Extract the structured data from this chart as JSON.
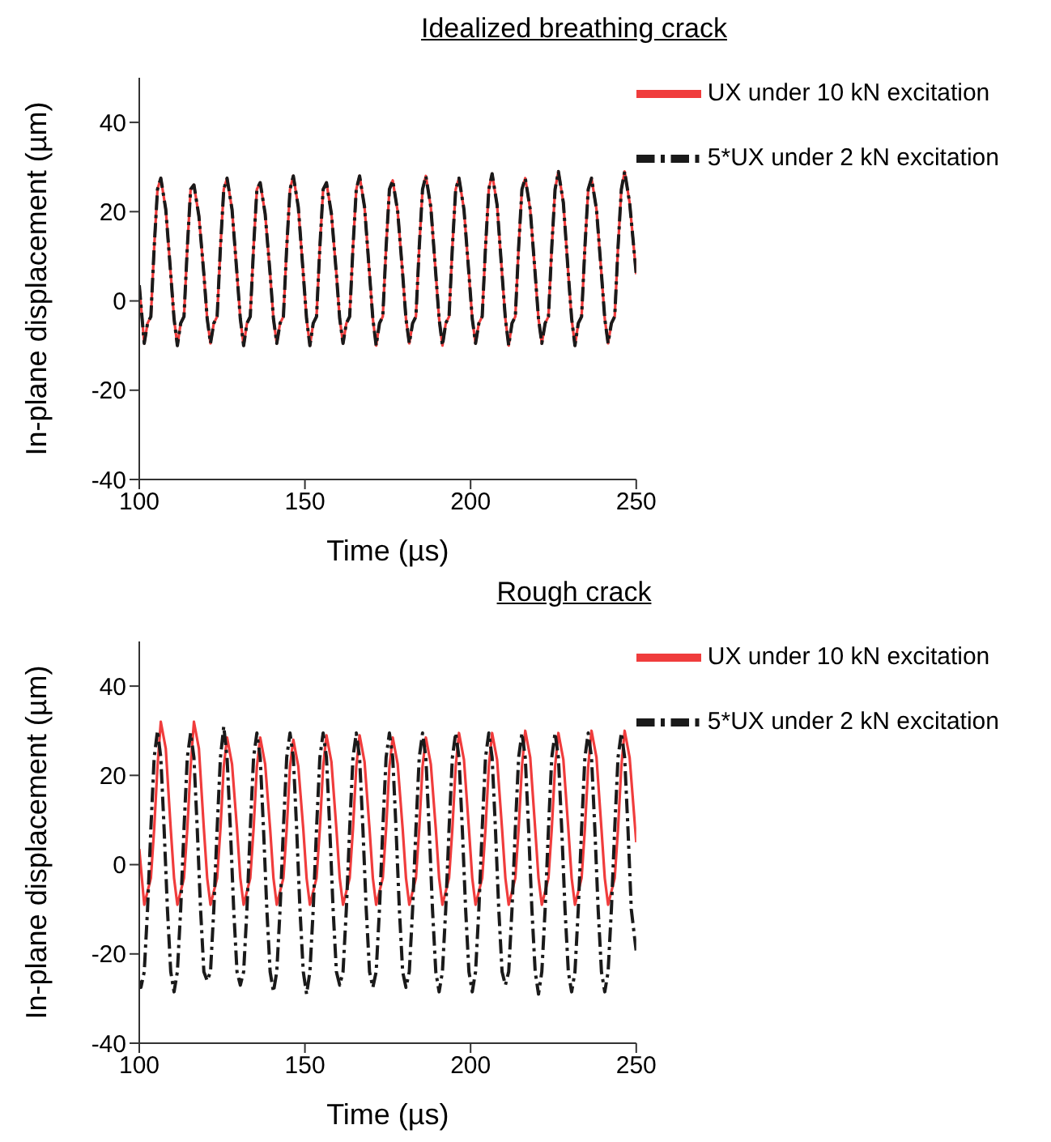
{
  "chart_data": [
    {
      "type": "line",
      "title": "Idealized breathing crack",
      "xlabel": "Time (µs)",
      "ylabel": "In-plane displacement (µm)",
      "xlim": [
        100,
        250
      ],
      "xticks": [
        100,
        150,
        200,
        250
      ],
      "ylim": [
        -40,
        50
      ],
      "yticks": [
        -40,
        -20,
        0,
        20,
        40
      ],
      "legend": "top right",
      "series": [
        {
          "name": "5*UX under 2 kN excitation",
          "color": "#1a1a1a",
          "line_style": "dashdot",
          "x": [
            100,
            101.5,
            102.5,
            103.5,
            104.5,
            105.5,
            106.5,
            108,
            109.5,
            110.5,
            111.5,
            112.5,
            113.5,
            114.5,
            115.5,
            116.5,
            118,
            119.5,
            120.5,
            121.5,
            122.5,
            123.5,
            124.5,
            125.5,
            126.5,
            128,
            129.5,
            130.5,
            131.5,
            132.5,
            133.5,
            134.5,
            135.5,
            136.5,
            138,
            139.5,
            140.5,
            141.5,
            142.5,
            143.5,
            144.5,
            145.5,
            146.5,
            148,
            149.5,
            150.5,
            151.5,
            152.5,
            153.5,
            154.5,
            155.5,
            156.5,
            158,
            159.5,
            160.5,
            161.5,
            162.5,
            163.5,
            164.5,
            165.5,
            166.5,
            168,
            169.5,
            170.5,
            171.5,
            172.5,
            173.5,
            174.5,
            175.5,
            176.5,
            178,
            179.5,
            180.5,
            181.5,
            182.5,
            183.5,
            184.5,
            185.5,
            186.5,
            188,
            189.5,
            190.5,
            191.5,
            192.5,
            193.5,
            194.5,
            195.5,
            196.5,
            198,
            199.5,
            200.5,
            201.5,
            202.5,
            203.5,
            204.5,
            205.5,
            206.5,
            208,
            209.5,
            210.5,
            211.5,
            212.5,
            213.5,
            214.5,
            215.5,
            216.5,
            218,
            219.5,
            220.5,
            221.5,
            222.5,
            223.5,
            224.5,
            225.5,
            226.5,
            228,
            229.5,
            230.5,
            231.5,
            232.5,
            233.5,
            234.5,
            235.5,
            236.5,
            238,
            239.5,
            240.5,
            241.5,
            242.5,
            243.5,
            244.5,
            245.5,
            246.5,
            248,
            250
          ],
          "values": [
            3.5,
            -9.5,
            -5,
            -3.5,
            12,
            25,
            27.5,
            20.5,
            6,
            -4,
            -10,
            -5,
            -3.5,
            12,
            25,
            26,
            19,
            6,
            -4,
            -9.5,
            -5,
            -3.5,
            12,
            25,
            27.5,
            20.5,
            6,
            -4,
            -10,
            -5,
            -3.5,
            12,
            25,
            26.5,
            19.5,
            6,
            -4,
            -9.5,
            -5,
            -3.5,
            12,
            25,
            28,
            21,
            6,
            -4,
            -10,
            -5,
            -3.5,
            12,
            25,
            26.5,
            19.5,
            6,
            -4,
            -9.5,
            -5,
            -3.5,
            12,
            25,
            28,
            21,
            6,
            -4,
            -10,
            -5,
            -3.5,
            12,
            25,
            27,
            20,
            6,
            -4,
            -9.5,
            -5,
            -3.5,
            12,
            25,
            28,
            21,
            6,
            -4,
            -10,
            -5,
            -3.5,
            12,
            25,
            27.5,
            20.5,
            6,
            -4,
            -9.5,
            -5,
            -3.5,
            12,
            25,
            28.5,
            21.5,
            6,
            -4,
            -10,
            -5,
            -3.5,
            12,
            25,
            27.5,
            20.5,
            6,
            -4,
            -9.5,
            -5,
            -3.5,
            12,
            25,
            29,
            22,
            6,
            -4,
            -10,
            -5,
            -3.5,
            12,
            25,
            27.5,
            20.5,
            6,
            -4,
            -9.5,
            -5,
            -3.5,
            12,
            25,
            29,
            22,
            6
          ]
        },
        {
          "name": "UX under 10 kN excitation",
          "color": "#f03c3c",
          "line_style": "solid",
          "x": [
            100,
            101.5,
            102.5,
            103.5,
            104.5,
            105.5,
            106.5,
            108,
            109.5,
            110.5,
            111.5,
            112.5,
            113.5,
            114.5,
            115.5,
            116.5,
            118,
            119.5,
            120.5,
            121.5,
            122.5,
            123.5,
            124.5,
            125.5,
            126.5,
            128,
            129.5,
            130.5,
            131.5,
            132.5,
            133.5,
            134.5,
            135.5,
            136.5,
            138,
            139.5,
            140.5,
            141.5,
            142.5,
            143.5,
            144.5,
            145.5,
            146.5,
            148,
            149.5,
            150.5,
            151.5,
            152.5,
            153.5,
            154.5,
            155.5,
            156.5,
            158,
            159.5,
            160.5,
            161.5,
            162.5,
            163.5,
            164.5,
            165.5,
            166.5,
            168,
            169.5,
            170.5,
            171.5,
            172.5,
            173.5,
            174.5,
            175.5,
            176.5,
            178,
            179.5,
            180.5,
            181.5,
            182.5,
            183.5,
            184.5,
            185.5,
            186.5,
            188,
            189.5,
            190.5,
            191.5,
            192.5,
            193.5,
            194.5,
            195.5,
            196.5,
            198,
            199.5,
            200.5,
            201.5,
            202.5,
            203.5,
            204.5,
            205.5,
            206.5,
            208,
            209.5,
            210.5,
            211.5,
            212.5,
            213.5,
            214.5,
            215.5,
            216.5,
            218,
            219.5,
            220.5,
            221.5,
            222.5,
            223.5,
            224.5,
            225.5,
            226.5,
            228,
            229.5,
            230.5,
            231.5,
            232.5,
            233.5,
            234.5,
            235.5,
            236.5,
            238,
            239.5,
            240.5,
            241.5,
            242.5,
            243.5,
            244.5,
            245.5,
            246.5,
            248,
            250
          ],
          "values": [
            3.5,
            -9.5,
            -5,
            -3.5,
            12,
            25,
            27.5,
            20.5,
            6,
            -4,
            -10,
            -5,
            -3.5,
            12,
            25,
            26,
            19,
            6,
            -4,
            -9.5,
            -5,
            -3.5,
            12,
            25,
            27.5,
            20.5,
            6,
            -4,
            -10,
            -5,
            -3.5,
            12,
            25,
            26.5,
            19.5,
            6,
            -4,
            -9.5,
            -5,
            -3.5,
            12,
            25,
            28,
            21,
            6,
            -4,
            -10,
            -5,
            -3.5,
            12,
            25,
            26.5,
            19.5,
            6,
            -4,
            -9.5,
            -5,
            -3.5,
            12,
            25,
            28,
            21,
            6,
            -4,
            -10,
            -5,
            -3.5,
            12,
            25,
            27,
            20,
            6,
            -4,
            -9.5,
            -5,
            -3.5,
            12,
            25,
            28,
            21,
            6,
            -4,
            -10,
            -5,
            -3.5,
            12,
            25,
            27.5,
            20.5,
            6,
            -4,
            -9.5,
            -5,
            -3.5,
            12,
            25,
            28.5,
            21.5,
            6,
            -4,
            -10,
            -5,
            -3.5,
            12,
            25,
            27.5,
            20.5,
            6,
            -4,
            -9.5,
            -5,
            -3.5,
            12,
            25,
            29,
            22,
            6,
            -4,
            -10,
            -5,
            -3.5,
            12,
            25,
            27.5,
            20.5,
            6,
            -4,
            -9.5,
            -5,
            -3.5,
            12,
            25,
            29,
            22,
            6
          ]
        }
      ]
    },
    {
      "type": "line",
      "title": "Rough crack",
      "xlabel": "Time (µs)",
      "ylabel": "In-plane displacement (µm)",
      "xlim": [
        100,
        250
      ],
      "xticks": [
        100,
        150,
        200,
        250
      ],
      "ylim": [
        -40,
        50
      ],
      "yticks": [
        -40,
        -20,
        0,
        20,
        40
      ],
      "legend": "top right",
      "series": [
        {
          "name": "5*UX under 2 kN excitation",
          "color": "#1a1a1a",
          "line_style": "dashdot",
          "x": [
            100,
            100.5,
            101.5,
            102.5,
            103.5,
            104.5,
            105.5,
            106.5,
            107.5,
            108.5,
            109.5,
            110.5,
            111.5,
            112.5,
            113.5,
            114.5,
            115.5,
            116.5,
            117.5,
            118.5,
            119.5,
            120.5,
            121.5,
            122.5,
            123.5,
            124.5,
            125.5,
            126.5,
            127.5,
            128.5,
            129.5,
            130.5,
            131.5,
            132.5,
            133.5,
            134.5,
            135.5,
            136.5,
            137.5,
            138.5,
            139.5,
            140.5,
            141.5,
            142.5,
            143.5,
            144.5,
            145.5,
            146.5,
            147.5,
            148.5,
            149.5,
            150.5,
            151.5,
            152.5,
            153.5,
            154.5,
            155.5,
            156.5,
            157.5,
            158.5,
            159.5,
            160.5,
            161.5,
            162.5,
            163.5,
            164.5,
            165.5,
            166.5,
            167.5,
            168.5,
            169.5,
            170.5,
            171.5,
            172.5,
            173.5,
            174.5,
            175.5,
            176.5,
            177.5,
            178.5,
            179.5,
            180.5,
            181.5,
            182.5,
            183.5,
            184.5,
            185.5,
            186.5,
            187.5,
            188.5,
            189.5,
            190.5,
            191.5,
            192.5,
            193.5,
            194.5,
            195.5,
            196.5,
            197.5,
            198.5,
            199.5,
            200.5,
            201.5,
            202.5,
            203.5,
            204.5,
            205.5,
            206.5,
            207.5,
            208.5,
            209.5,
            210.5,
            211.5,
            212.5,
            213.5,
            214.5,
            215.5,
            216.5,
            217.5,
            218.5,
            219.5,
            220.5,
            221.5,
            222.5,
            223.5,
            224.5,
            225.5,
            226.5,
            227.5,
            228.5,
            229.5,
            230.5,
            231.5,
            232.5,
            233.5,
            234.5,
            235.5,
            236.5,
            237.5,
            238.5,
            239.5,
            240.5,
            241.5,
            242.5,
            243.5,
            244.5,
            245.5,
            246.5,
            247.5,
            248.5,
            250
          ],
          "values": [
            -26,
            -27.5,
            -24,
            -10,
            8,
            24,
            30,
            24,
            8,
            -10,
            -24,
            -28.5,
            -24,
            -10,
            8,
            24,
            29.5,
            24,
            8,
            -10,
            -24,
            -26,
            -24,
            -10,
            8,
            24,
            31,
            24,
            8,
            -10,
            -24,
            -27,
            -24,
            -10,
            8,
            24,
            29.5,
            24,
            8,
            -10,
            -24,
            -28.5,
            -24,
            -10,
            8,
            24,
            29.5,
            24,
            8,
            -10,
            -24,
            -29,
            -24,
            -10,
            8,
            24,
            29.5,
            24,
            8,
            -10,
            -24,
            -27,
            -24,
            -10,
            8,
            24,
            29.5,
            24,
            8,
            -10,
            -24,
            -27.5,
            -24,
            -10,
            8,
            24,
            29.5,
            24,
            8,
            -10,
            -24,
            -27.5,
            -24,
            -10,
            8,
            24,
            29.5,
            24,
            8,
            -10,
            -24,
            -28.5,
            -24,
            -10,
            8,
            24,
            29.5,
            24,
            8,
            -10,
            -24,
            -28.5,
            -24,
            -10,
            8,
            24,
            29.5,
            24,
            8,
            -10,
            -24,
            -27,
            -24,
            -10,
            8,
            24,
            29.5,
            24,
            8,
            -10,
            -24,
            -29,
            -24,
            -10,
            8,
            24,
            29.5,
            24,
            8,
            -10,
            -24,
            -28.5,
            -24,
            -10,
            8,
            24,
            29.5,
            24,
            8,
            -10,
            -24,
            -28.5,
            -24,
            -10,
            8,
            24,
            29.5,
            24,
            8,
            -10,
            -19.5
          ]
        },
        {
          "name": "UX under 10 kN excitation",
          "color": "#f03c3c",
          "line_style": "solid",
          "x": [
            100,
            101.5,
            102.5,
            103.5,
            104.5,
            105.5,
            106.5,
            108,
            109.5,
            110.5,
            111.5,
            112.5,
            113.5,
            114.5,
            115.5,
            116.5,
            118,
            119.5,
            120.5,
            121.5,
            122.5,
            123.5,
            124.5,
            125.5,
            126.5,
            128,
            129.5,
            130.5,
            131.5,
            132.5,
            133.5,
            134.5,
            135.5,
            136.5,
            138,
            139.5,
            140.5,
            141.5,
            142.5,
            143.5,
            144.5,
            145.5,
            146.5,
            148,
            149.5,
            150.5,
            151.5,
            152.5,
            153.5,
            154.5,
            155.5,
            156.5,
            158,
            159.5,
            160.5,
            161.5,
            162.5,
            163.5,
            164.5,
            165.5,
            166.5,
            168,
            169.5,
            170.5,
            171.5,
            172.5,
            173.5,
            174.5,
            175.5,
            176.5,
            178,
            179.5,
            180.5,
            181.5,
            182.5,
            183.5,
            184.5,
            185.5,
            186.5,
            188,
            189.5,
            190.5,
            191.5,
            192.5,
            193.5,
            194.5,
            195.5,
            196.5,
            198,
            199.5,
            200.5,
            201.5,
            202.5,
            203.5,
            204.5,
            205.5,
            206.5,
            208,
            209.5,
            210.5,
            211.5,
            212.5,
            213.5,
            214.5,
            215.5,
            216.5,
            218,
            219.5,
            220.5,
            221.5,
            222.5,
            223.5,
            224.5,
            225.5,
            226.5,
            228,
            229.5,
            230.5,
            231.5,
            232.5,
            233.5,
            234.5,
            235.5,
            236.5,
            238,
            239.5,
            240.5,
            241.5,
            242.5,
            243.5,
            244.5,
            245.5,
            246.5,
            248,
            250
          ],
          "values": [
            3.5,
            -9,
            -6,
            -3,
            8,
            22,
            32,
            26,
            8,
            -3,
            -9,
            -6,
            -3,
            8,
            22,
            32,
            26,
            8,
            -3,
            -9,
            -6,
            -3,
            8,
            22,
            28.5,
            22.5,
            8,
            -3,
            -9,
            -6,
            -3,
            8,
            22,
            28.5,
            22.5,
            8,
            -3,
            -9,
            -6,
            -3,
            8,
            22,
            28,
            22,
            8,
            -3,
            -9,
            -6,
            -3,
            8,
            22,
            29,
            23,
            8,
            -3,
            -9,
            -6,
            -3,
            8,
            22,
            29,
            23,
            8,
            -3,
            -9,
            -6,
            -3,
            8,
            22,
            28.5,
            22.5,
            8,
            -3,
            -9,
            -6,
            -3,
            8,
            22,
            28.5,
            22.5,
            8,
            -3,
            -9,
            -6,
            -3,
            8,
            22,
            29.5,
            23.5,
            8,
            -3,
            -9,
            -6,
            -3,
            8,
            22,
            29.5,
            23.5,
            8,
            -3,
            -9,
            -6,
            -3,
            8,
            22,
            30,
            24,
            8,
            -3,
            -9,
            -6,
            -3,
            8,
            22,
            29.5,
            23.5,
            8,
            -3,
            -9,
            -6,
            -3,
            8,
            22,
            30,
            24,
            8,
            -3,
            -9,
            -6,
            -3,
            8,
            22,
            30,
            24,
            5
          ]
        }
      ]
    }
  ]
}
